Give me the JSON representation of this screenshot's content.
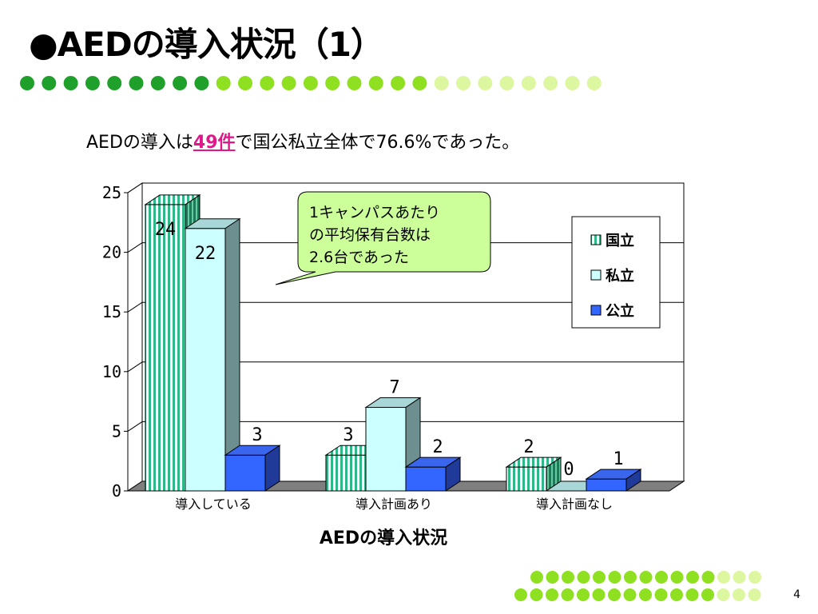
{
  "slide": {
    "title": "●AEDの導入状況（1）",
    "summary_prefix": "AEDの導入は",
    "summary_highlight": "49件",
    "summary_suffix": "で国公私立全体で76.6%であった。",
    "page_number": "4",
    "colors": {
      "dot_dark": "#1fa02a",
      "dot_mid": "#8fe020",
      "dot_light": "#ddf7a0"
    }
  },
  "chart_data": {
    "type": "bar",
    "title": "",
    "xlabel": "AEDの導入状況",
    "ylabel": "",
    "categories": [
      "導入している",
      "導入計画あり",
      "導入計画なし"
    ],
    "ylim": [
      0,
      25
    ],
    "yticks": [
      0,
      5,
      10,
      15,
      20,
      25
    ],
    "grid": true,
    "legend_position": "right",
    "series": [
      {
        "name": "国立",
        "values": [
          24,
          3,
          2
        ],
        "color": "#2eb88a",
        "pattern": "vertical-stripes"
      },
      {
        "name": "私立",
        "values": [
          22,
          7,
          0
        ],
        "color": "#ccffff"
      },
      {
        "name": "公立",
        "values": [
          3,
          2,
          1
        ],
        "color": "#3366ff"
      }
    ],
    "callout": "1キャンパスあたりの平均保有台数は2.6台であった",
    "callout_lines": [
      "1キャンパスあたり",
      "の平均保有台数は",
      "2.6台であった"
    ]
  }
}
